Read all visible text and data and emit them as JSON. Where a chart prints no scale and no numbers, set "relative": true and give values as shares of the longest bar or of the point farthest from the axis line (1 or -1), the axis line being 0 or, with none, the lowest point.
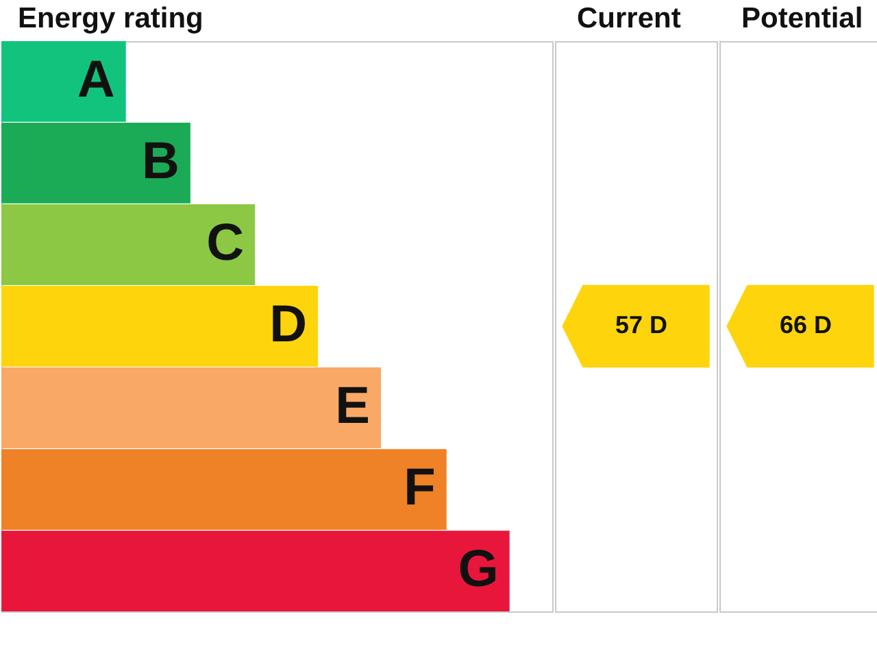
{
  "chart_data": {
    "type": "bar",
    "orientation": "horizontal",
    "relative": true,
    "title": "Energy rating",
    "categories": [
      "A",
      "B",
      "C",
      "D",
      "E",
      "F",
      "G"
    ],
    "values": [
      0.245,
      0.372,
      0.499,
      0.623,
      0.747,
      0.876,
      1
    ],
    "colors": [
      "#12c37e",
      "#1bab57",
      "#8cc843",
      "#fed40c",
      "#f9a866",
      "#ef8126",
      "#e8163b"
    ],
    "annotations": [
      "Current",
      "Potential",
      "57 D",
      "66 D"
    ]
  }
}
